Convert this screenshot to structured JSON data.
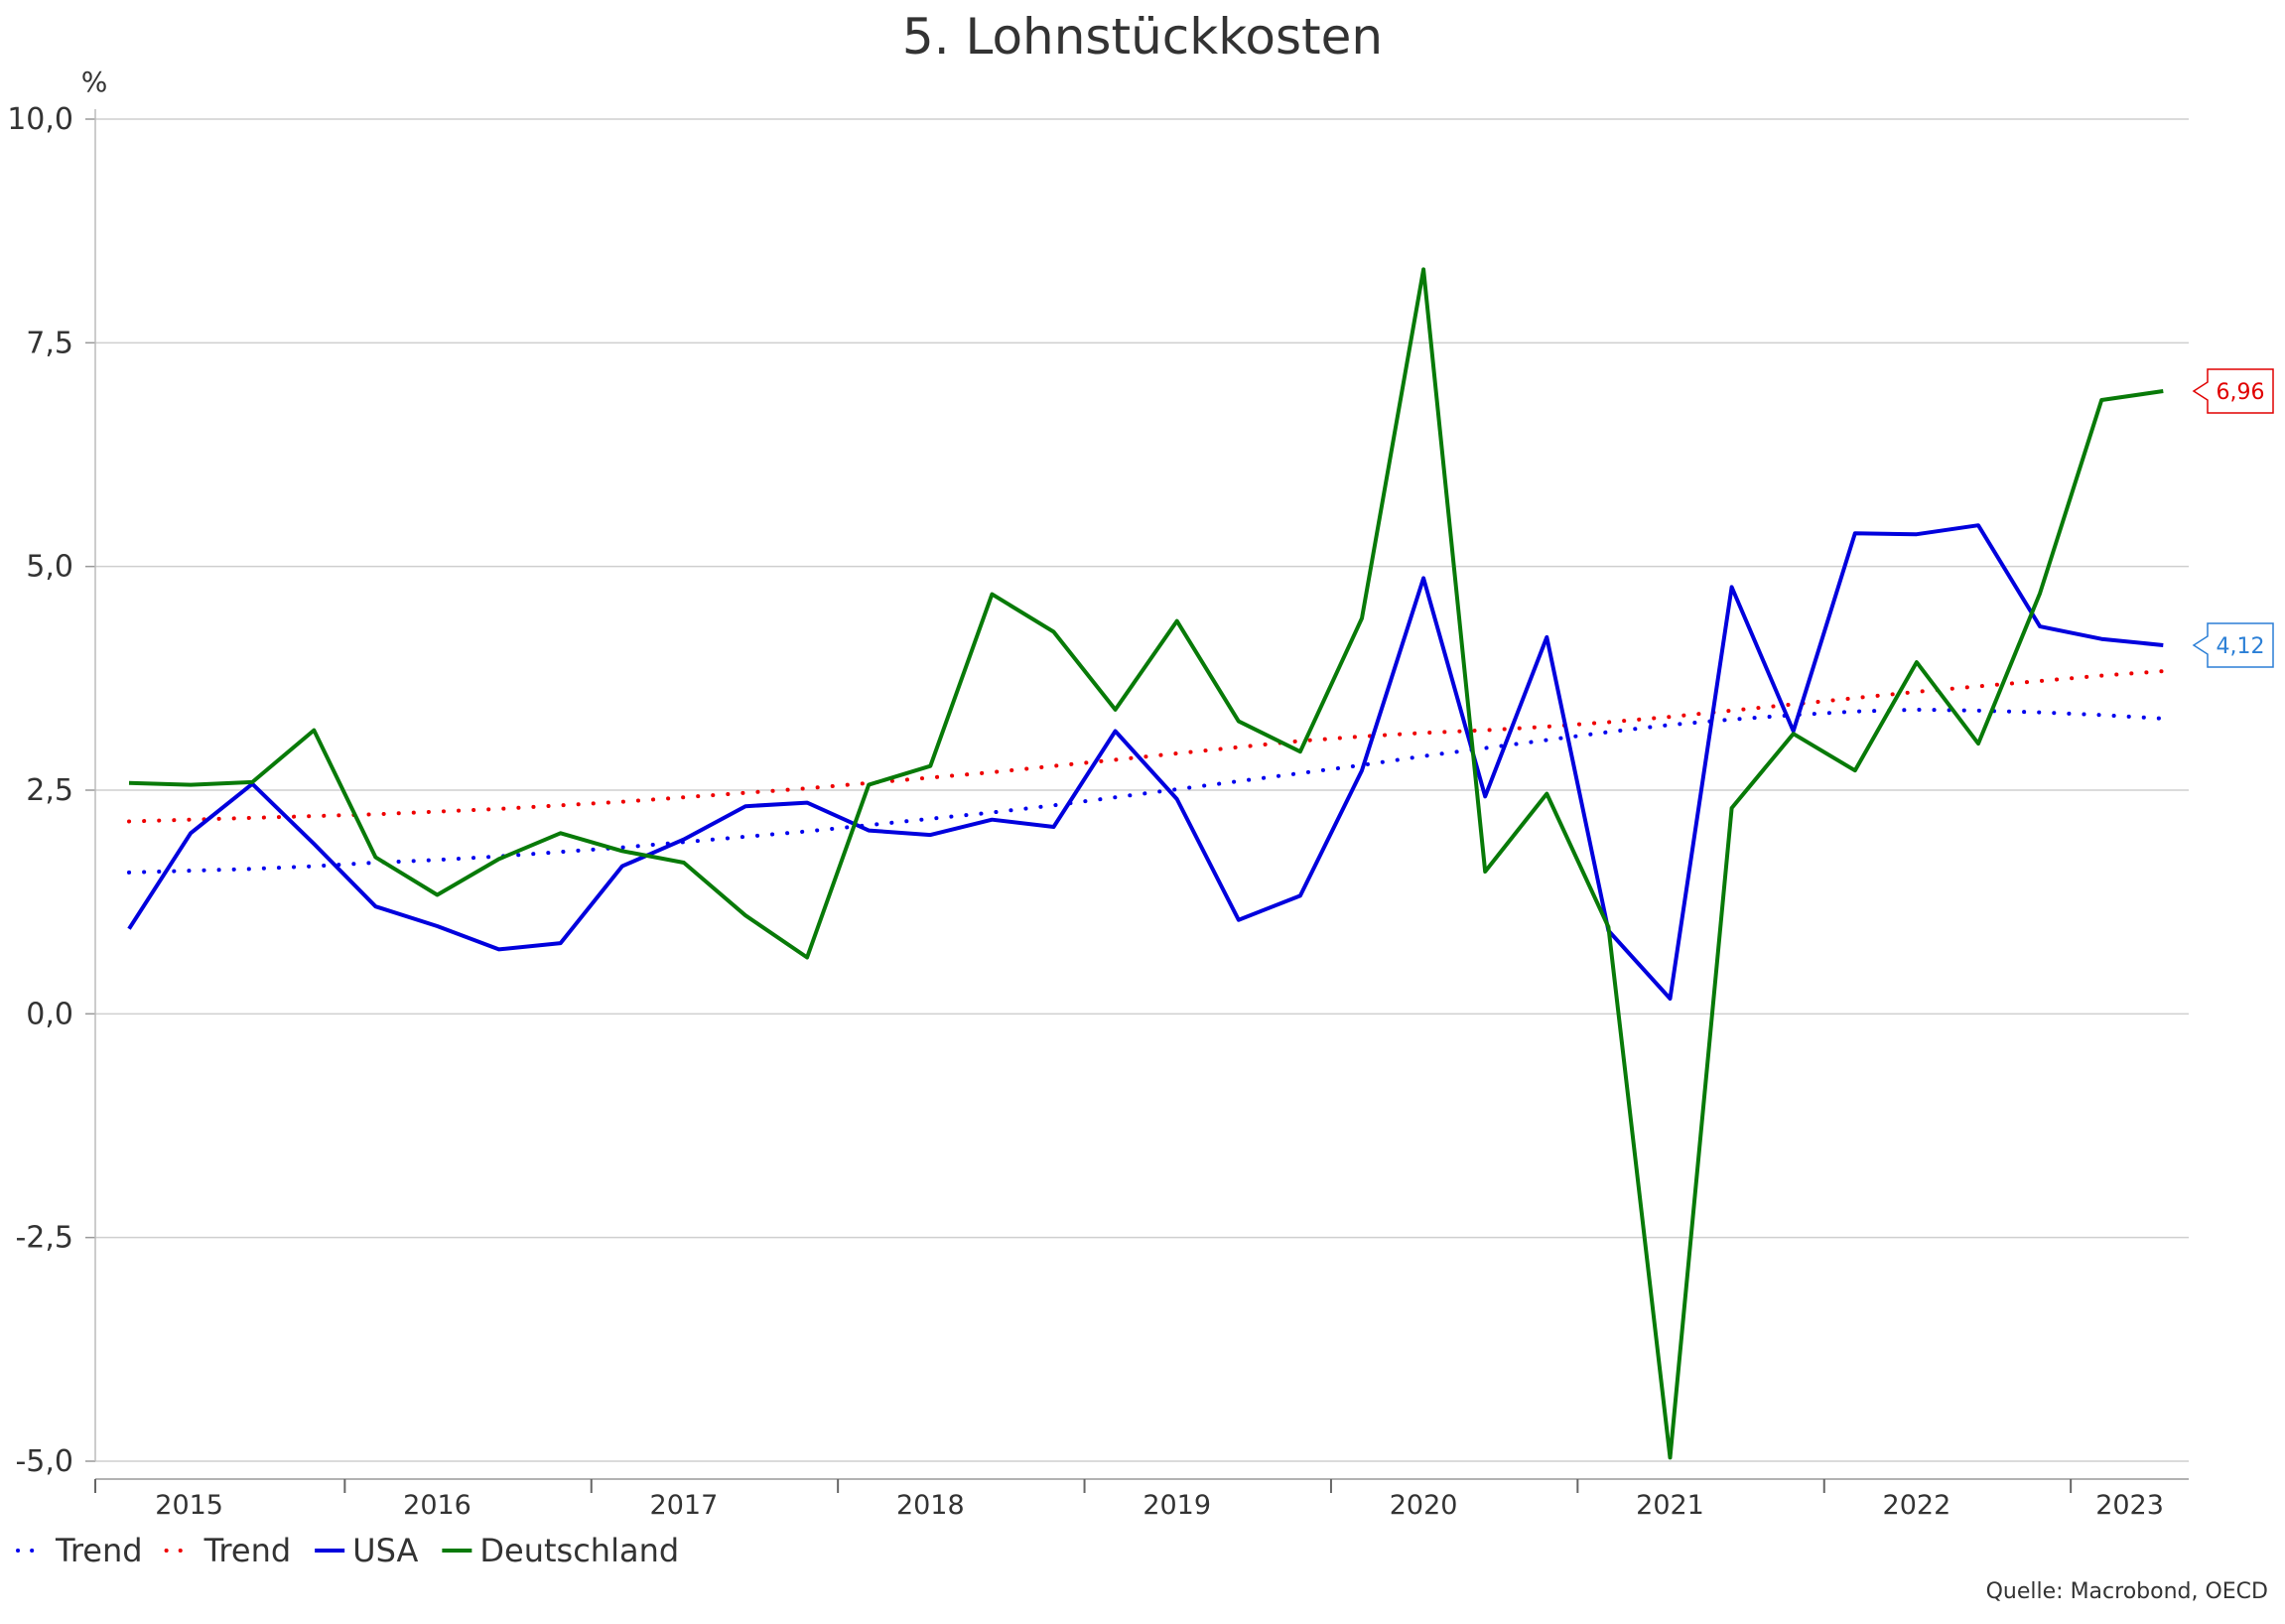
{
  "chart_data": {
    "type": "line",
    "title": "5. Lohnstückkosten",
    "ylabel": "%",
    "ylim": [
      -5,
      10
    ],
    "yticks": [
      10,
      7.5,
      5,
      2.5,
      0,
      -2.5,
      -5
    ],
    "ytick_labels": [
      "10,0",
      "7,5",
      "5,0",
      "2,5",
      "0,0",
      "-2,5",
      "-5,0"
    ],
    "year_labels": [
      "2015",
      "2016",
      "2017",
      "2018",
      "2019",
      "2020",
      "2021",
      "2022",
      "2023"
    ],
    "grid": true,
    "legend_position": "bottom-left",
    "source": "Quelle: Macrobond, OECD",
    "series": [
      {
        "name": "Trend",
        "style": "dotted",
        "color": "#0000ee",
        "values": [
          1.58,
          1.6,
          1.62,
          1.65,
          1.69,
          1.72,
          1.76,
          1.81,
          1.86,
          1.92,
          1.98,
          2.04,
          2.11,
          2.18,
          2.25,
          2.33,
          2.42,
          2.51,
          2.6,
          2.69,
          2.78,
          2.88,
          2.97,
          3.06,
          3.15,
          3.23,
          3.29,
          3.34,
          3.38,
          3.4,
          3.39,
          3.37,
          3.34,
          3.3
        ]
      },
      {
        "name": "Trend",
        "style": "dotted",
        "color": "#ee0000",
        "values": [
          2.15,
          2.17,
          2.19,
          2.21,
          2.23,
          2.26,
          2.29,
          2.33,
          2.37,
          2.42,
          2.47,
          2.52,
          2.58,
          2.64,
          2.7,
          2.77,
          2.84,
          2.91,
          2.98,
          3.05,
          3.1,
          3.14,
          3.17,
          3.21,
          3.26,
          3.32,
          3.39,
          3.46,
          3.53,
          3.6,
          3.66,
          3.72,
          3.78,
          3.83
        ]
      },
      {
        "name": "USA",
        "style": "solid",
        "color": "#0000dd",
        "values": [
          0.95,
          2.02,
          2.57,
          1.9,
          1.2,
          0.98,
          0.72,
          0.79,
          1.65,
          1.95,
          2.32,
          2.36,
          2.05,
          2.0,
          2.17,
          2.09,
          3.16,
          2.4,
          1.05,
          1.32,
          2.72,
          4.87,
          2.43,
          4.21,
          0.93,
          0.17,
          4.77,
          3.16,
          5.37,
          5.36,
          5.46,
          4.33,
          4.19,
          4.12
        ]
      },
      {
        "name": "Deutschland",
        "style": "solid",
        "color": "#087a08",
        "values": [
          2.58,
          2.56,
          2.59,
          3.17,
          1.75,
          1.33,
          1.73,
          2.02,
          1.82,
          1.69,
          1.1,
          0.63,
          2.56,
          2.77,
          4.69,
          4.27,
          3.4,
          4.39,
          3.27,
          2.93,
          4.42,
          8.32,
          1.59,
          2.46,
          0.97,
          -4.96,
          2.3,
          3.13,
          2.72,
          3.93,
          3.02,
          4.7,
          6.86,
          6.96
        ]
      }
    ],
    "end_labels": [
      {
        "text": "6,96",
        "color": "#e00000",
        "value": 6.96
      },
      {
        "text": "4,12",
        "color": "#2b7fd6",
        "value": 4.12
      }
    ]
  }
}
